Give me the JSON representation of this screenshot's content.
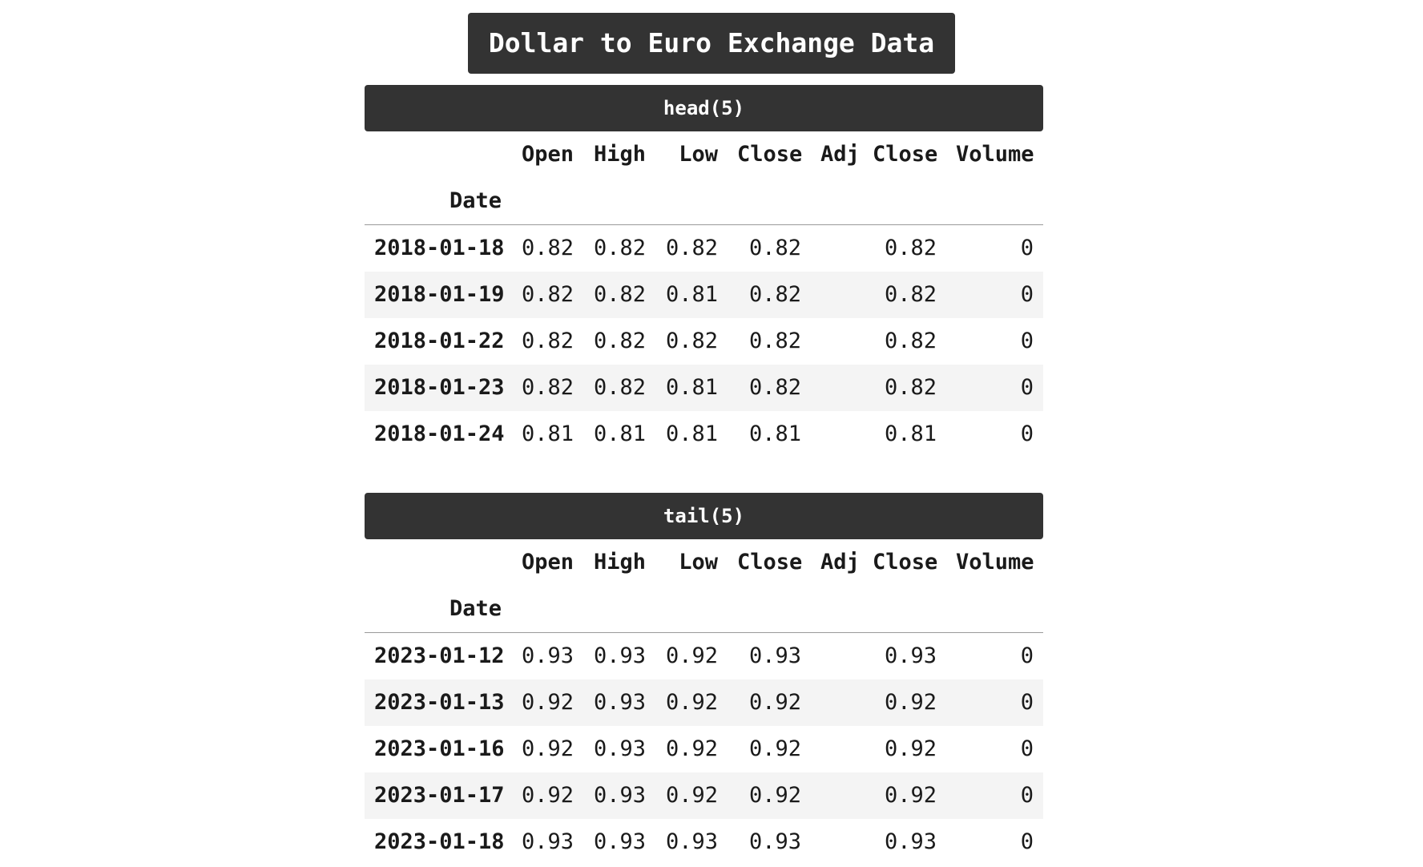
{
  "title": "Dollar to Euro Exchange Data",
  "columns": [
    "Open",
    "High",
    "Low",
    "Close",
    "Adj Close",
    "Volume"
  ],
  "index_label": "Date",
  "head": {
    "caption": "head(5)",
    "rows": [
      {
        "date": "2018-01-18",
        "open": "0.82",
        "high": "0.82",
        "low": "0.82",
        "close": "0.82",
        "adj_close": "0.82",
        "volume": "0"
      },
      {
        "date": "2018-01-19",
        "open": "0.82",
        "high": "0.82",
        "low": "0.81",
        "close": "0.82",
        "adj_close": "0.82",
        "volume": "0"
      },
      {
        "date": "2018-01-22",
        "open": "0.82",
        "high": "0.82",
        "low": "0.82",
        "close": "0.82",
        "adj_close": "0.82",
        "volume": "0"
      },
      {
        "date": "2018-01-23",
        "open": "0.82",
        "high": "0.82",
        "low": "0.81",
        "close": "0.82",
        "adj_close": "0.82",
        "volume": "0"
      },
      {
        "date": "2018-01-24",
        "open": "0.81",
        "high": "0.81",
        "low": "0.81",
        "close": "0.81",
        "adj_close": "0.81",
        "volume": "0"
      }
    ]
  },
  "tail": {
    "caption": "tail(5)",
    "rows": [
      {
        "date": "2023-01-12",
        "open": "0.93",
        "high": "0.93",
        "low": "0.92",
        "close": "0.93",
        "adj_close": "0.93",
        "volume": "0"
      },
      {
        "date": "2023-01-13",
        "open": "0.92",
        "high": "0.93",
        "low": "0.92",
        "close": "0.92",
        "adj_close": "0.92",
        "volume": "0"
      },
      {
        "date": "2023-01-16",
        "open": "0.92",
        "high": "0.93",
        "low": "0.92",
        "close": "0.92",
        "adj_close": "0.92",
        "volume": "0"
      },
      {
        "date": "2023-01-17",
        "open": "0.92",
        "high": "0.93",
        "low": "0.92",
        "close": "0.92",
        "adj_close": "0.92",
        "volume": "0"
      },
      {
        "date": "2023-01-18",
        "open": "0.93",
        "high": "0.93",
        "low": "0.93",
        "close": "0.93",
        "adj_close": "0.93",
        "volume": "0"
      }
    ]
  },
  "colors": {
    "header_bg": "#333333",
    "header_text": "#ffffff",
    "row_stripe": "#f4f4f4"
  }
}
